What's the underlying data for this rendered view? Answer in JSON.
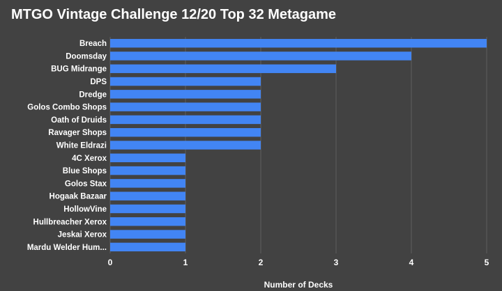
{
  "chart_data": {
    "type": "bar",
    "orientation": "horizontal",
    "title": "MTGO Vintage Challenge 12/20 Top 32 Metagame",
    "xlabel": "Number of Decks",
    "ylabel": "",
    "categories": [
      "Breach",
      "Doomsday",
      "BUG Midrange",
      "DPS",
      "Dredge",
      "Golos Combo Shops",
      "Oath of Druids",
      "Ravager Shops",
      "White Eldrazi",
      "4C Xerox",
      "Blue Shops",
      "Golos Stax",
      "Hogaak Bazaar",
      "HollowVine",
      "Hullbreacher Xerox",
      "Jeskai Xerox",
      "Mardu Welder Hum..."
    ],
    "values": [
      5,
      4,
      3,
      2,
      2,
      2,
      2,
      2,
      2,
      1,
      1,
      1,
      1,
      1,
      1,
      1,
      1
    ],
    "xlim": [
      0,
      5
    ],
    "xticks": [
      "0",
      "1",
      "2",
      "3",
      "4",
      "5"
    ],
    "grid": true,
    "colors": {
      "background": "#424242",
      "bar": "#4285f4",
      "grid": "#5f5f5f",
      "text": "#ffffff"
    }
  }
}
